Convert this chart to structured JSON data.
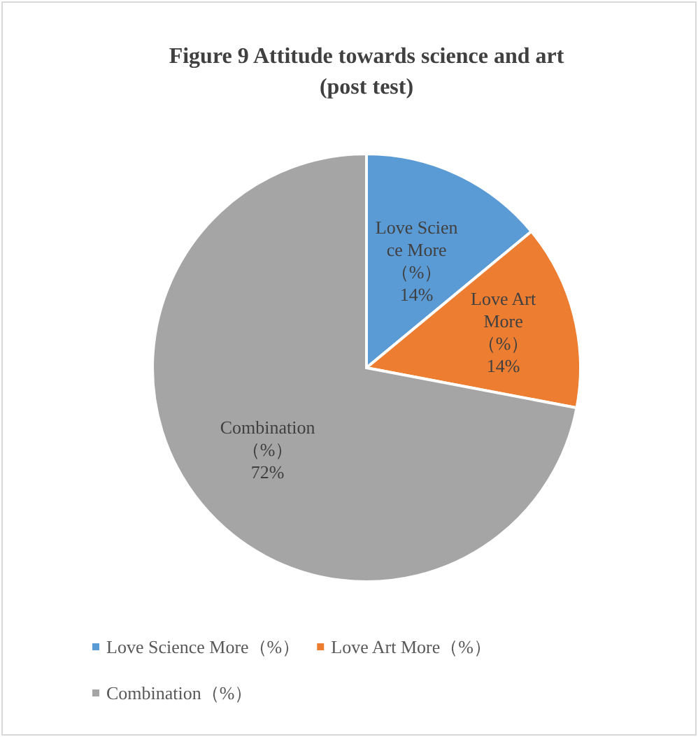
{
  "chart_data": {
    "type": "pie",
    "title": "Figure 9 Attitude towards science and art\n(post test)",
    "categories": [
      "Love Science More（%）",
      "Love Art More（%）",
      "Combination（%）"
    ],
    "values": [
      14,
      14,
      72
    ],
    "value_labels": [
      "14%",
      "14%",
      "72%"
    ],
    "colors": [
      "#5b9bd5",
      "#ed7d31",
      "#a5a5a5"
    ],
    "legend": "bottom"
  }
}
